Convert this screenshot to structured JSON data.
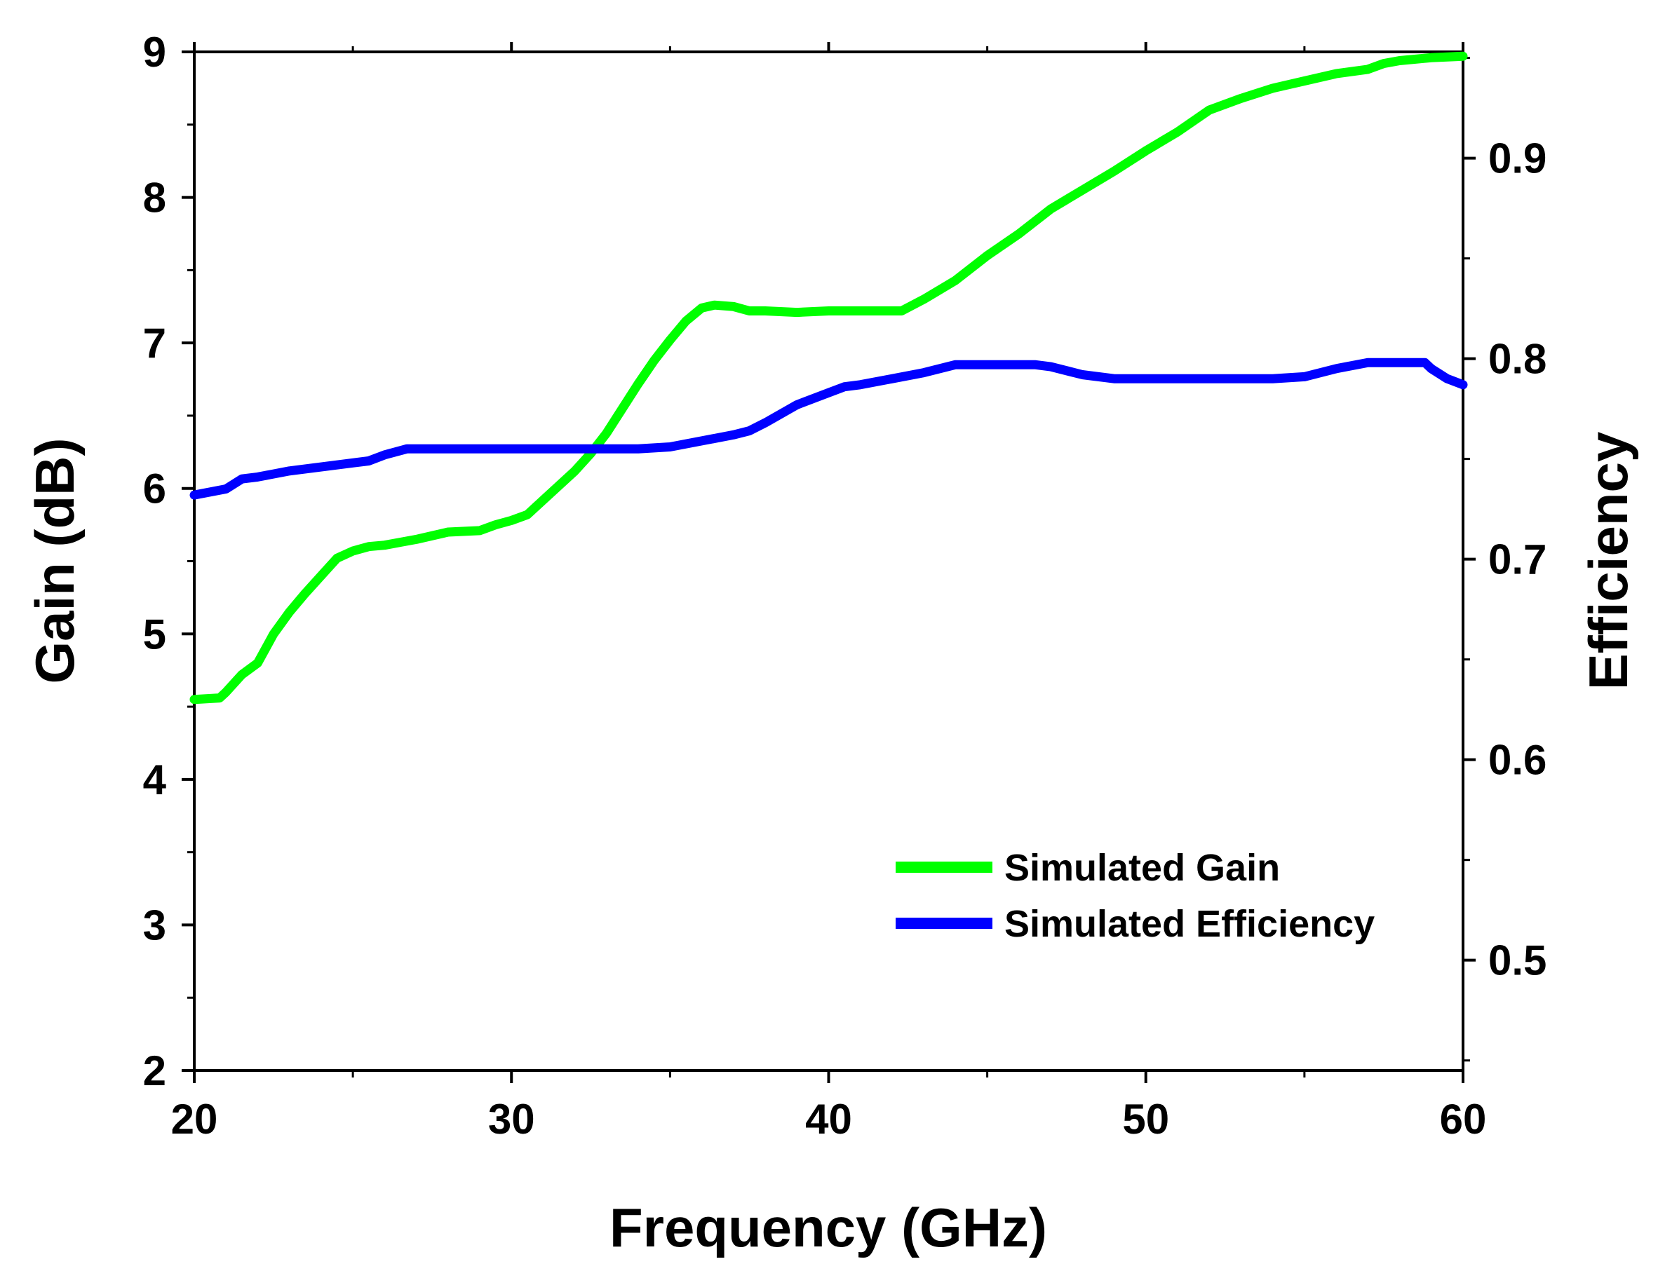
{
  "chart_data": {
    "type": "line",
    "title": "",
    "xlabel": "Frequency (GHz)",
    "ylabel": "Gain (dB)",
    "y2label": "Efficiency",
    "xlim": [
      20,
      60
    ],
    "ylim": [
      2,
      9
    ],
    "y2lim": [
      0.445,
      0.953
    ],
    "xticks": [
      20,
      30,
      40,
      50,
      60
    ],
    "xtick_labels": [
      "20",
      "30",
      "40",
      "50",
      "60"
    ],
    "yticks": [
      2,
      3,
      4,
      5,
      6,
      7,
      8,
      9
    ],
    "ytick_labels": [
      "2",
      "3",
      "4",
      "5",
      "6",
      "7",
      "8",
      "9"
    ],
    "y2ticks": [
      0.5,
      0.6,
      0.7,
      0.8,
      0.9
    ],
    "y2tick_labels": [
      "0.5",
      "0.6",
      "0.7",
      "0.8",
      "0.9"
    ],
    "grid": false,
    "legend_position": "bottom-right",
    "colors": {
      "gain": "#00ff00",
      "efficiency": "#0000ff",
      "axis": "#000000"
    },
    "series": [
      {
        "name": "Simulated Gain",
        "axis": "left",
        "x": [
          20,
          20.8,
          21,
          21.5,
          22,
          22.5,
          23,
          23.5,
          24,
          24.5,
          25,
          25.5,
          26,
          26.5,
          27,
          28,
          29,
          29.5,
          30,
          30.5,
          31,
          31.5,
          32,
          32.5,
          33,
          33.5,
          34,
          34.5,
          35,
          35.5,
          36,
          36.4,
          37,
          37.5,
          38,
          39,
          40,
          41,
          42.3,
          43,
          44,
          45,
          46,
          47,
          48,
          49,
          50,
          51,
          52,
          53,
          54,
          55,
          56,
          57,
          57.5,
          58,
          59,
          60
        ],
        "values": [
          4.55,
          4.56,
          4.6,
          4.72,
          4.8,
          5.0,
          5.15,
          5.28,
          5.4,
          5.52,
          5.57,
          5.6,
          5.61,
          5.63,
          5.65,
          5.7,
          5.71,
          5.75,
          5.78,
          5.82,
          5.92,
          6.02,
          6.12,
          6.24,
          6.38,
          6.55,
          6.72,
          6.88,
          7.02,
          7.15,
          7.24,
          7.26,
          7.25,
          7.22,
          7.22,
          7.21,
          7.22,
          7.22,
          7.22,
          7.3,
          7.43,
          7.6,
          7.75,
          7.92,
          8.05,
          8.18,
          8.32,
          8.45,
          8.6,
          8.68,
          8.75,
          8.8,
          8.85,
          8.88,
          8.92,
          8.94,
          8.96,
          8.97
        ]
      },
      {
        "name": "Simulated Efficiency",
        "axis": "right",
        "x": [
          20,
          21,
          21.5,
          22,
          23,
          24,
          25,
          25.5,
          26,
          26.7,
          28,
          30,
          32,
          34,
          35,
          36,
          37,
          37.5,
          38,
          39,
          40,
          40.5,
          41,
          42,
          43,
          44,
          45,
          46,
          46.5,
          47,
          48,
          49,
          50,
          51,
          52,
          53,
          54,
          55,
          56,
          57,
          58,
          58.8,
          59,
          59.5,
          60
        ],
        "values": [
          0.732,
          0.735,
          0.74,
          0.741,
          0.744,
          0.746,
          0.748,
          0.749,
          0.752,
          0.755,
          0.755,
          0.755,
          0.755,
          0.755,
          0.756,
          0.759,
          0.762,
          0.764,
          0.768,
          0.777,
          0.783,
          0.786,
          0.787,
          0.79,
          0.793,
          0.797,
          0.797,
          0.797,
          0.797,
          0.796,
          0.792,
          0.79,
          0.79,
          0.79,
          0.79,
          0.79,
          0.79,
          0.791,
          0.795,
          0.798,
          0.798,
          0.798,
          0.795,
          0.79,
          0.787
        ]
      }
    ]
  }
}
